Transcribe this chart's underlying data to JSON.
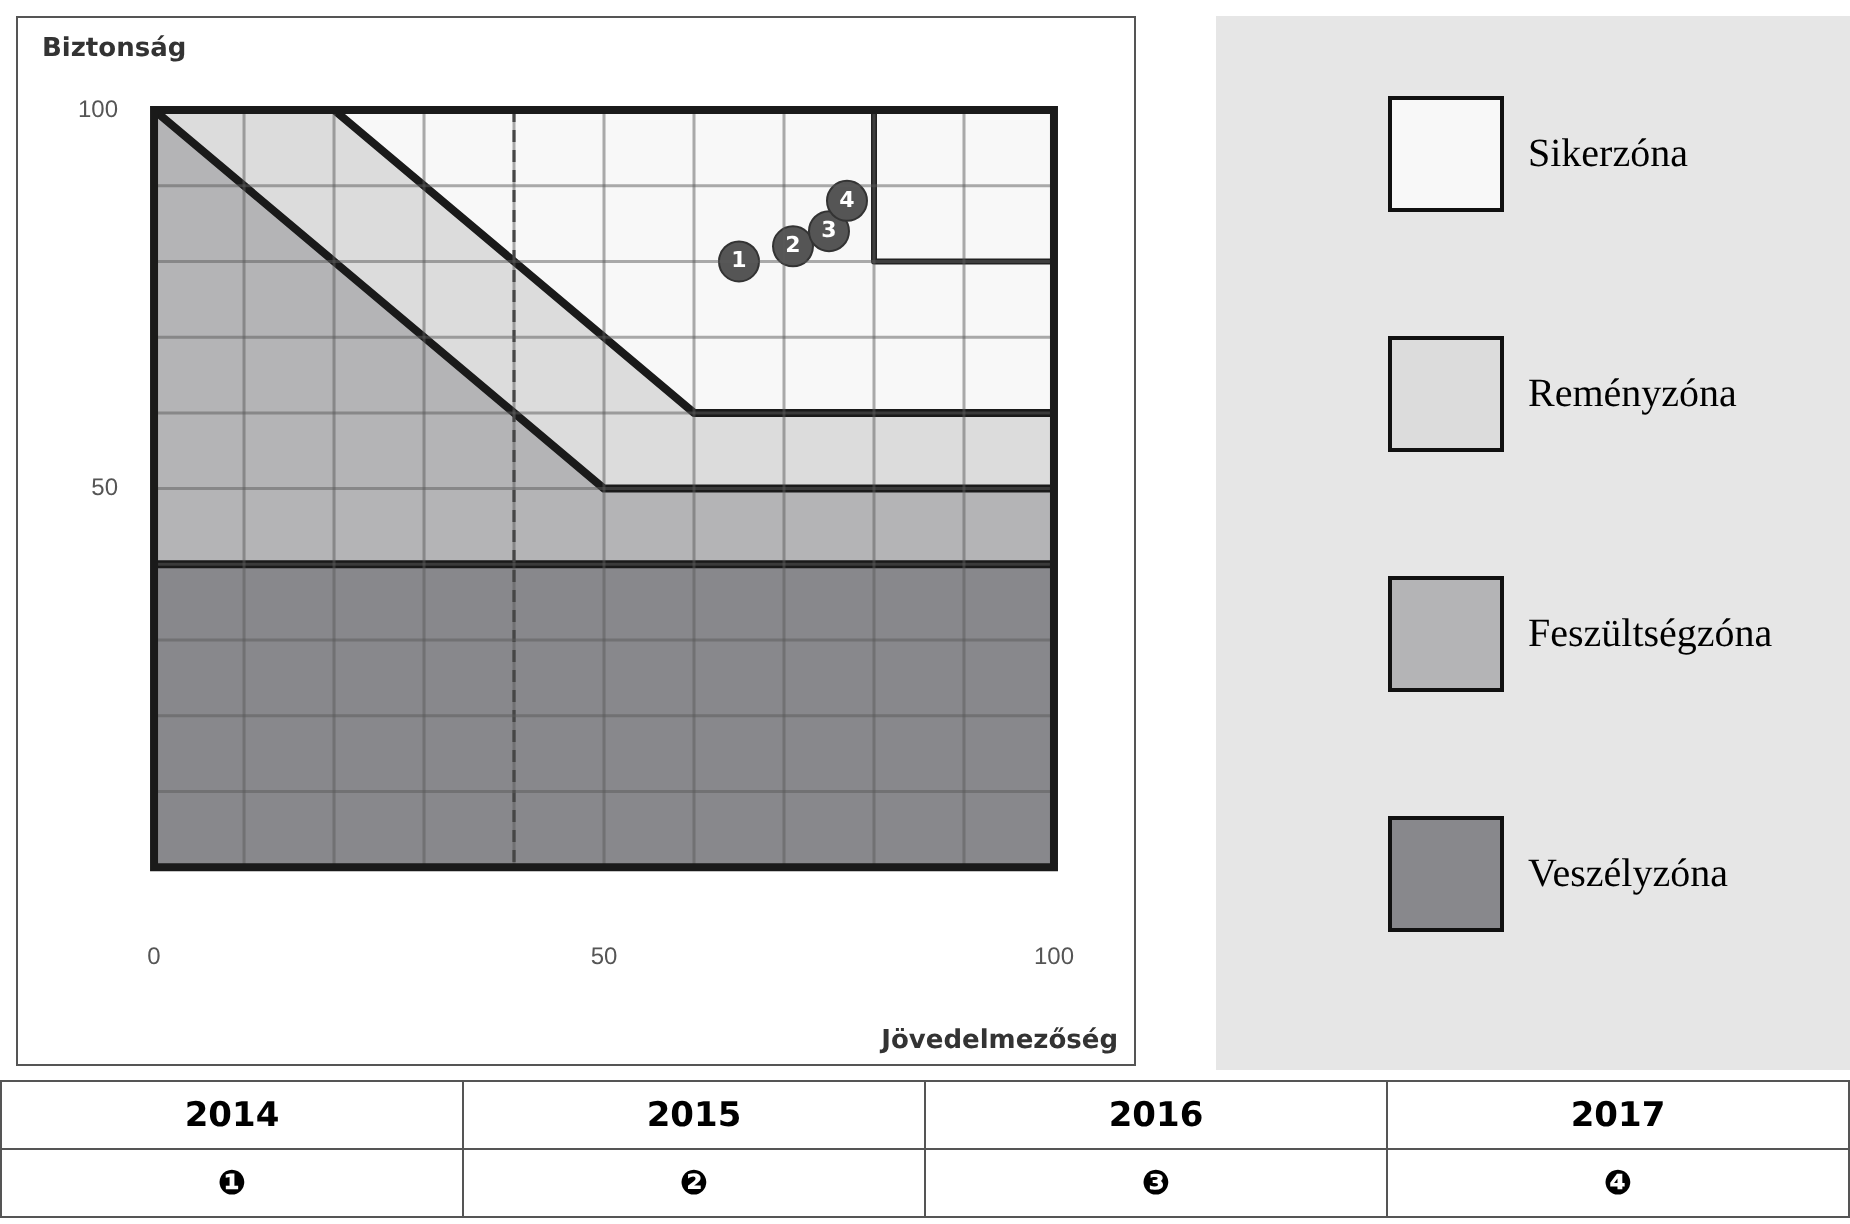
{
  "chart_data": {
    "type": "area",
    "xlabel": "Jövedelmezőség",
    "ylabel": "Biztonság",
    "xlim": [
      0,
      100
    ],
    "ylim": [
      0,
      100
    ],
    "xticks": [
      0,
      {
        "value": 10,
        "label": null
      },
      {
        "value": 20,
        "label": null
      },
      {
        "value": 30,
        "label": null
      },
      {
        "value": 40,
        "label": null
      },
      50,
      {
        "value": 60,
        "label": null
      },
      {
        "value": 70,
        "label": null
      },
      {
        "value": 80,
        "label": null
      },
      {
        "value": 90,
        "label": null
      },
      100
    ],
    "yticks": [
      {
        "value": 0,
        "label": null
      },
      {
        "value": 10,
        "label": null
      },
      {
        "value": 20,
        "label": null
      },
      {
        "value": 30,
        "label": null
      },
      {
        "value": 40,
        "label": null
      },
      50,
      {
        "value": 60,
        "label": null
      },
      {
        "value": 70,
        "label": null
      },
      {
        "value": 80,
        "label": null
      },
      {
        "value": 90,
        "label": null
      },
      100
    ],
    "grid": true,
    "legend": "right",
    "stacked": true,
    "series": [
      {
        "name": "Veszélyzóna",
        "color": "#88888c",
        "x": [
          0,
          20,
          50,
          60,
          100
        ],
        "values": [
          40,
          40,
          40,
          40,
          40
        ]
      },
      {
        "name": "Feszültségzóna",
        "color": "#b4b4b6",
        "x": [
          0,
          20,
          50,
          60,
          100
        ],
        "values": [
          60,
          40,
          10,
          10,
          10
        ]
      },
      {
        "name": "Reményzóna",
        "color": "#dcdcdc",
        "x": [
          0,
          20,
          50,
          60,
          100
        ],
        "values": [
          0,
          20,
          20,
          10,
          10
        ]
      },
      {
        "name": "Sikerzóna",
        "color": "#f8f8f8",
        "x": [
          0,
          20,
          50,
          60,
          100
        ],
        "values": [
          0,
          0,
          30,
          40,
          40
        ]
      },
      {
        "type": "scatter",
        "color": "#555555",
        "marker": "circle",
        "x": [
          65,
          71,
          75,
          77
        ],
        "values": [
          80,
          82,
          84,
          88
        ]
      },
      {
        "type": "line",
        "color": "#222222",
        "marker": "none",
        "x": [
          80,
          80,
          100
        ],
        "values": [
          100,
          80,
          80
        ]
      }
    ],
    "ref_lines": [
      {
        "axis": "x",
        "value": 40,
        "color": "#333333",
        "line_style": "dashed"
      }
    ],
    "annotations": [
      {
        "text": "1",
        "x": 65,
        "y": 80
      },
      {
        "text": "2",
        "x": 71,
        "y": 82
      },
      {
        "text": "3",
        "x": 75,
        "y": 84
      },
      {
        "text": "4",
        "x": 77,
        "y": 88
      },
      "2014",
      "2015",
      "2016",
      "2017",
      "❶",
      "❷",
      "❸",
      "❹"
    ]
  }
}
